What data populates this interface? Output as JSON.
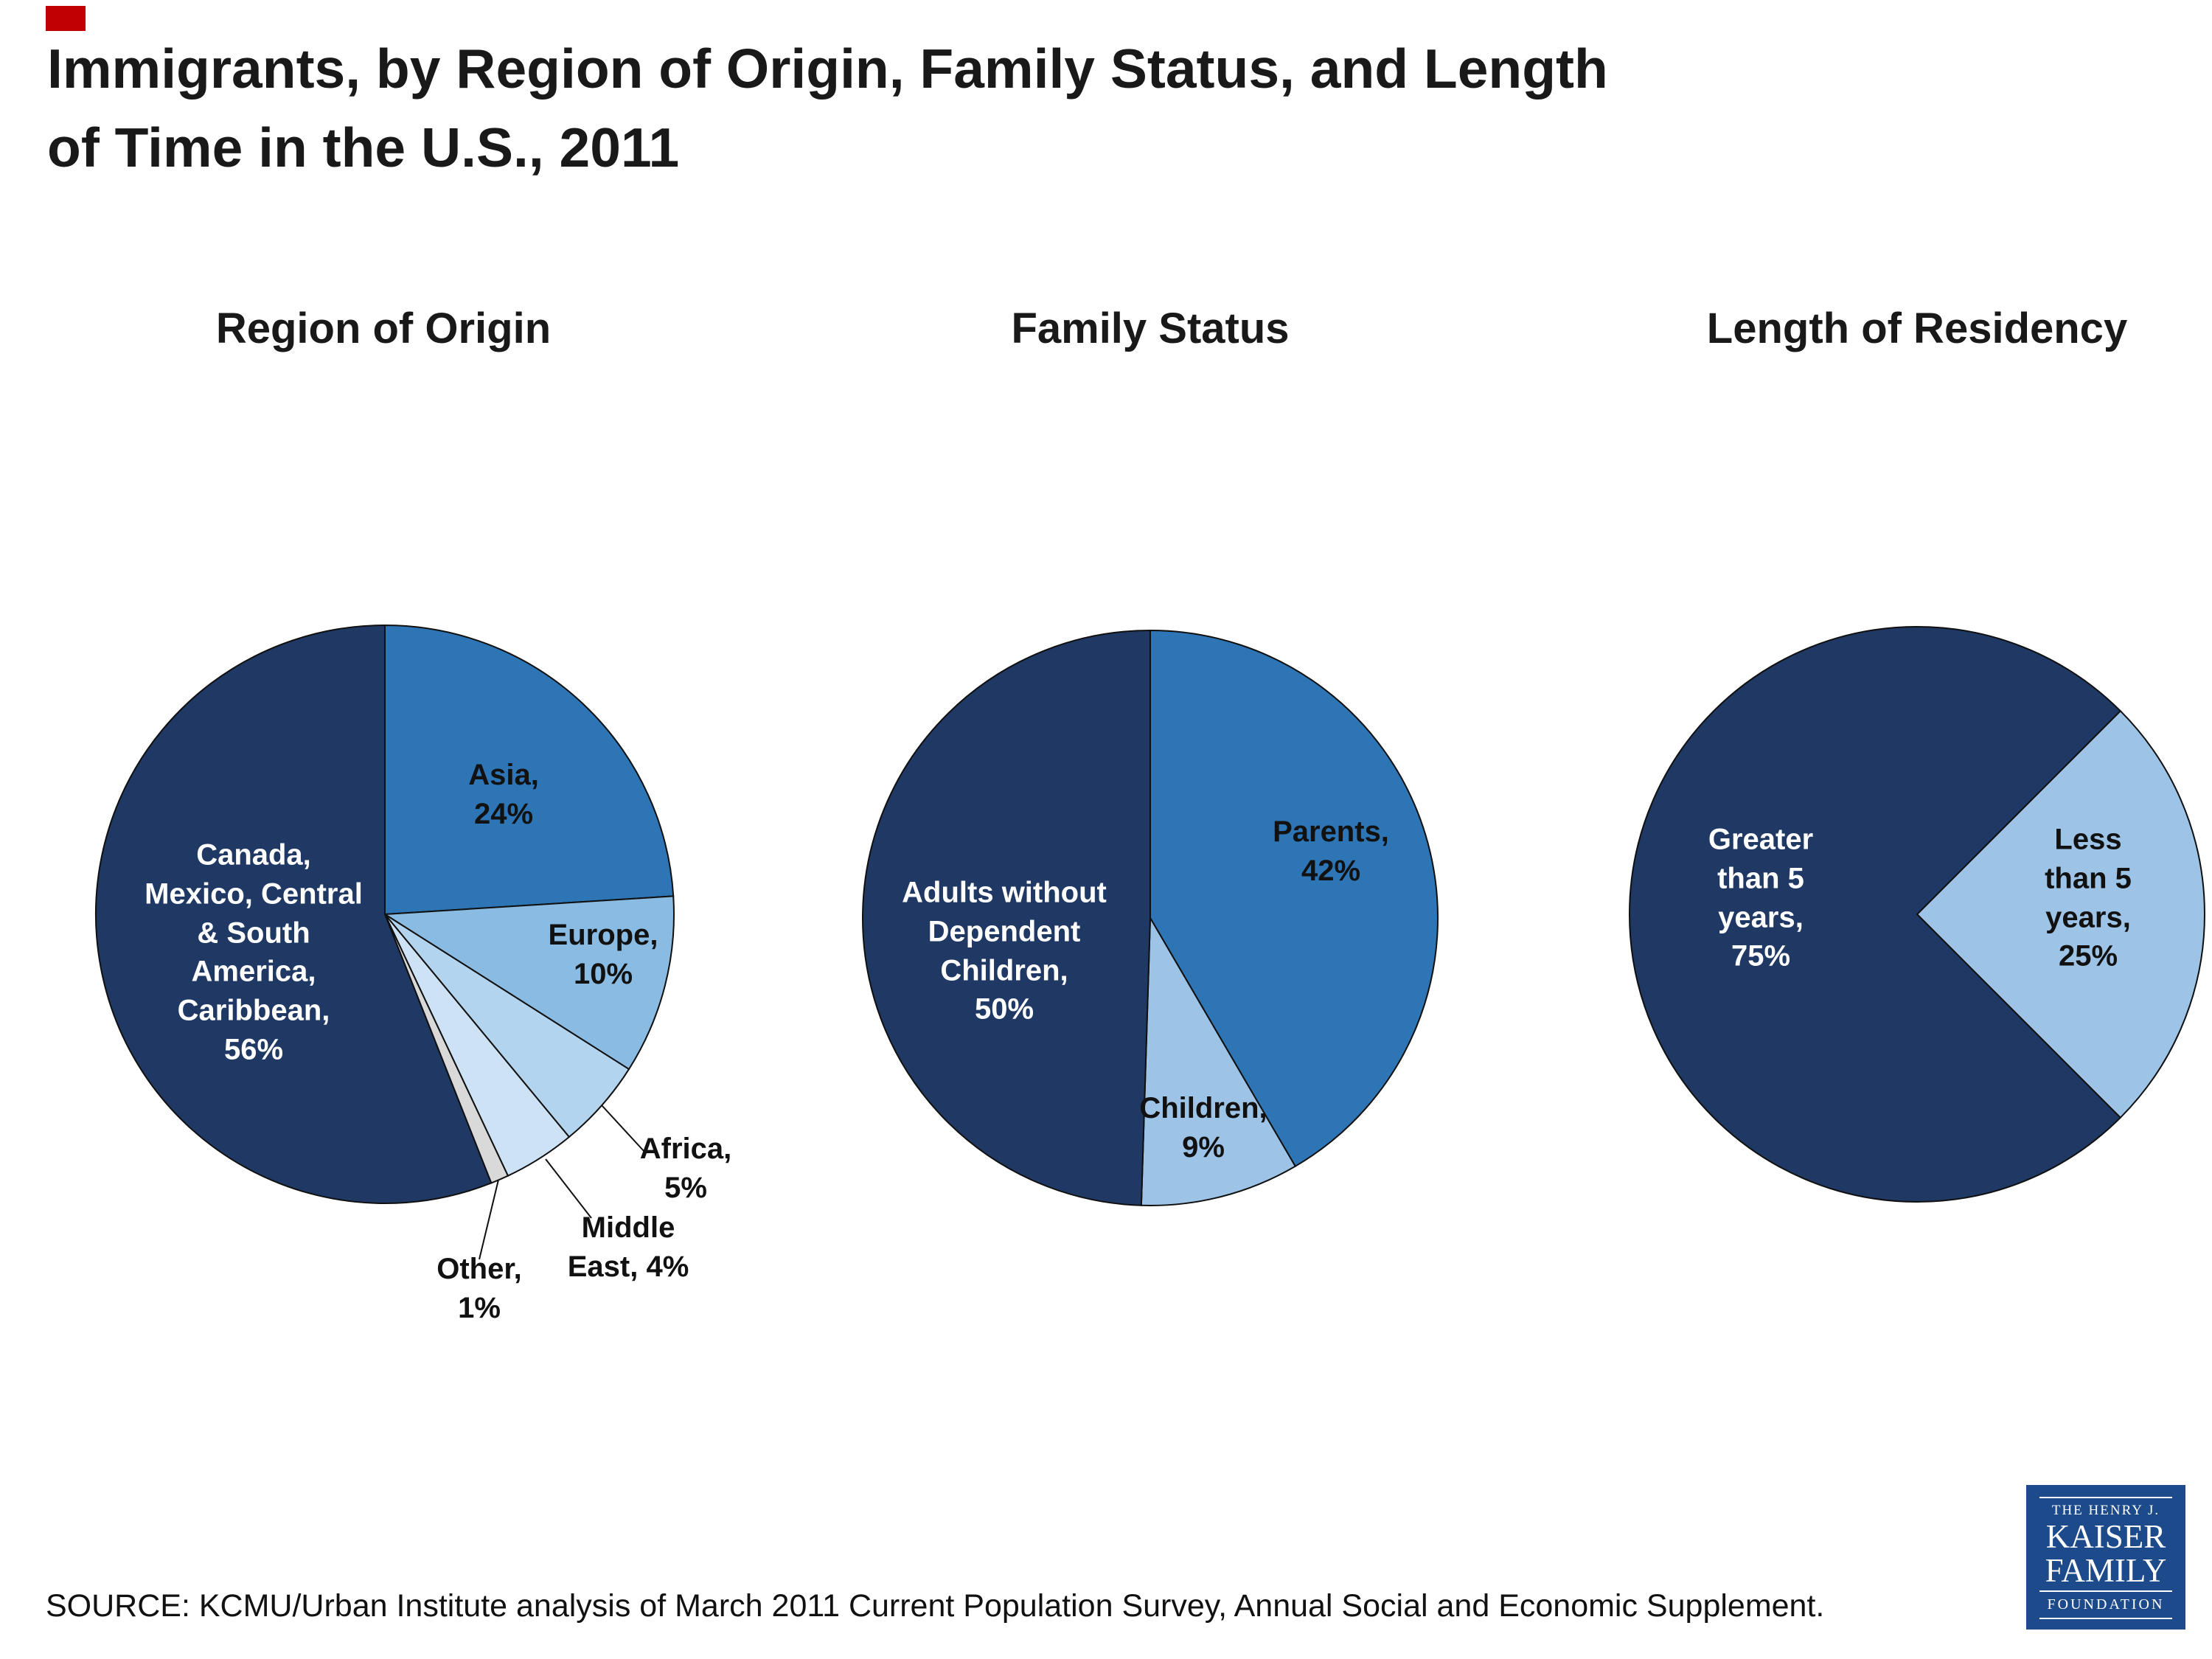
{
  "page": {
    "title": "Immigrants, by Region of Origin, Family Status, and Length\nof Time in the U.S., 2011",
    "source": "SOURCE: KCMU/Urban Institute analysis of March 2011 Current Population Survey, Annual Social and Economic Supplement.",
    "accent_color": "#c00000",
    "title_color": "#191919"
  },
  "logo": {
    "line1": "THE HENRY J.",
    "line2": "KAISER",
    "line3": "FAMILY",
    "line4": "FOUNDATION",
    "bg_color": "#1c4a8b"
  },
  "chart_data": [
    {
      "type": "pie",
      "title": "Region of Origin",
      "start_angle": 0,
      "legend_position": "none",
      "center": [
        522,
        440
      ],
      "radius": 392,
      "slices": [
        {
          "label": "Asia",
          "value": 24,
          "color": "#2e75b6",
          "text": "Asia,\n24%",
          "text_color": "#111111",
          "text_pos": [
            683,
            278
          ]
        },
        {
          "label": "Europe",
          "value": 10,
          "color": "#8abbe2",
          "text": "Europe,\n10%",
          "text_color": "#111111",
          "text_pos": [
            818,
            495
          ]
        },
        {
          "label": "Africa",
          "value": 5,
          "color": "#b3d4ee",
          "text": "Africa,\n5%",
          "text_color": "#111111",
          "text_pos": [
            930,
            785
          ],
          "leader": [
            816,
            699,
            874,
            762
          ]
        },
        {
          "label": "Middle East",
          "value": 4,
          "color": "#cde2f4",
          "text": "Middle\nEast, 4%",
          "text_color": "#111111",
          "text_pos": [
            852,
            892
          ],
          "leader": [
            740,
            772,
            802,
            852
          ]
        },
        {
          "label": "Other",
          "value": 1,
          "color": "#d9d9d9",
          "text": "Other,\n1%",
          "text_color": "#111111",
          "text_pos": [
            650,
            948
          ],
          "leader": [
            676,
            800,
            650,
            908
          ]
        },
        {
          "label": "Canada, Mexico, Central & South America, Caribbean",
          "value": 56,
          "color": "#1f3864",
          "text": "Canada,\nMexico, Central\n& South\nAmerica,\nCaribbean,\n56%",
          "text_color": "#ffffff",
          "text_pos": [
            344,
            492
          ]
        }
      ]
    },
    {
      "type": "pie",
      "title": "Family Status",
      "start_angle": 0,
      "legend_position": "none",
      "center": [
        520,
        445
      ],
      "radius": 390,
      "slices": [
        {
          "label": "Parents",
          "value": 42,
          "color": "#2e75b6",
          "text": "Parents,\n42%",
          "text_color": "#111111",
          "text_pos": [
            765,
            355
          ]
        },
        {
          "label": "Children",
          "value": 9,
          "color": "#9dc3e6",
          "text": "Children,\n9%",
          "text_color": "#111111",
          "text_pos": [
            592,
            730
          ]
        },
        {
          "label": "Adults without Dependent Children",
          "value": 50,
          "color": "#1f3864",
          "text": "Adults without\nDependent\nChildren,\n50%",
          "text_color": "#ffffff",
          "text_pos": [
            322,
            490
          ]
        }
      ]
    },
    {
      "type": "pie",
      "title": "Length of Residency",
      "start_angle": 45,
      "legend_position": "none",
      "center": [
        520,
        440
      ],
      "radius": 390,
      "slices": [
        {
          "label": "Less than 5 years",
          "value": 25,
          "color": "#9dc3e6",
          "text": "Less\nthan 5\nyears,\n25%",
          "text_color": "#111111",
          "text_pos": [
            752,
            418
          ]
        },
        {
          "label": "Greater than 5 years",
          "value": 75,
          "color": "#1f3864",
          "text": "Greater\nthan 5\nyears,\n75%",
          "text_color": "#ffffff",
          "text_pos": [
            308,
            418
          ]
        }
      ]
    }
  ]
}
